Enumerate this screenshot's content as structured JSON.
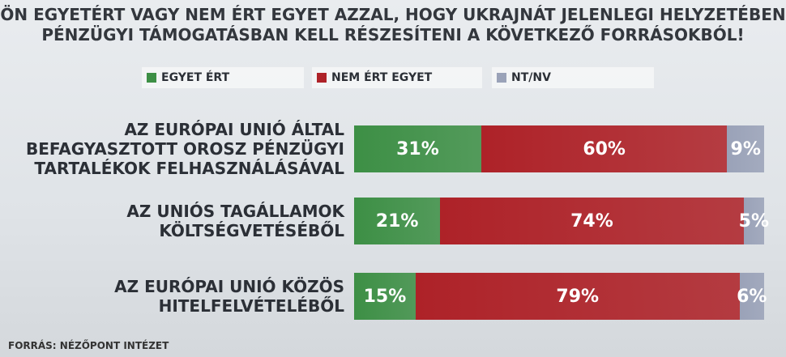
{
  "chart_data": {
    "type": "stacked-bar-horizontal",
    "title": "ÖN EGYETÉRT VAGY NEM ÉRT EGYET AZZAL, HOGY UKRAJNÁT JELENLEGI HELYZETÉBEN\nPÉNZÜGYI TÁMOGATÁSBAN KELL RÉSZESÍTENI A KÖVETKEZŐ FORRÁSOKBÓL!",
    "categories": [
      "AZ EURÓPAI UNIÓ ÁLTAL\nBEFAGYASZTOTT OROSZ PÉNZÜGYI\nTARTALÉKOK FELHASZNÁLÁSÁVAL",
      "AZ UNIÓS TAGÁLLAMOK\nKÖLTSÉGVETÉSÉBŐL",
      "AZ EURÓPAI UNIÓ KÖZÖS\nHITELFELVÉTELÉBŐL"
    ],
    "series": [
      {
        "name": "EGYET ÉRT",
        "color": "#3d8f45",
        "values": [
          31,
          21,
          15
        ],
        "value_labels": [
          "31%",
          "21%",
          "15%"
        ]
      },
      {
        "name": "NEM ÉRT EGYET",
        "color": "#ae2228",
        "values": [
          60,
          74,
          79
        ],
        "value_labels": [
          "60%",
          "74%",
          "79%"
        ]
      },
      {
        "name": "NT/NV",
        "color": "#9aa2b8",
        "values": [
          9,
          5,
          6
        ],
        "value_labels": [
          "9%",
          "5%",
          "6%"
        ]
      }
    ],
    "source": "FORRÁS: NÉZŐPONT INTÉZET"
  }
}
